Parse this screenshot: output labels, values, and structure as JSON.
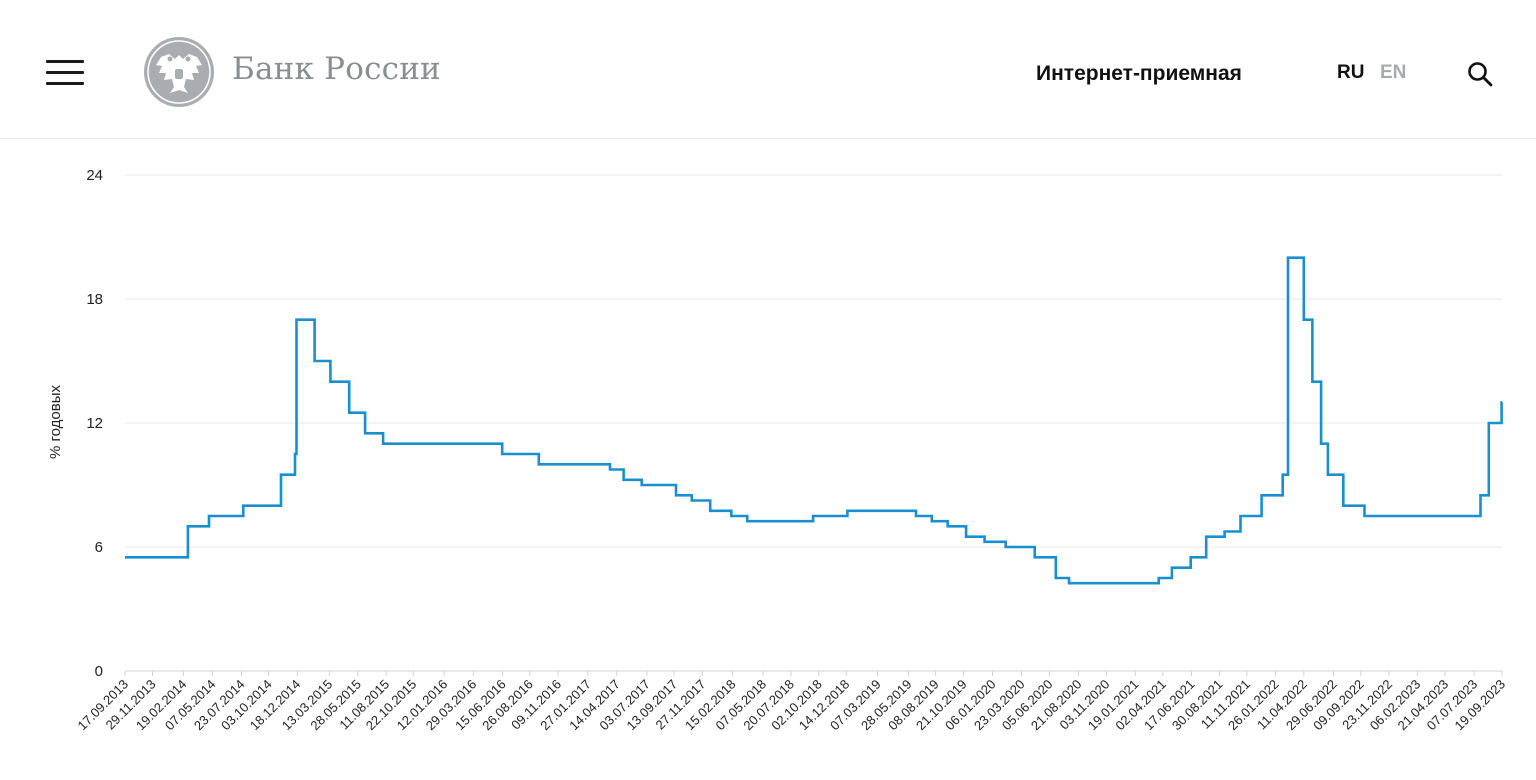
{
  "header": {
    "logo_text": "Банк России",
    "reception_label": "Интернет-приемная",
    "lang_ru": "RU",
    "lang_en": "EN",
    "icons": {
      "menu": "hamburger-menu-icon",
      "emblem": "double-headed-eagle-emblem",
      "search": "search-icon"
    }
  },
  "colors": {
    "line": "#1a8fd0",
    "grid": "#e6e8eb",
    "text": "#111111",
    "logo_gray": "#8a8e93",
    "inactive_lang": "#a7abb0"
  },
  "chart_data": {
    "type": "line",
    "title": "",
    "xlabel": "",
    "ylabel": "% годовых",
    "ylim": [
      0,
      24
    ],
    "yticks": [
      0,
      6,
      12,
      18,
      24
    ],
    "grid": true,
    "legend": "none",
    "line_style": "step",
    "xticks": [
      "17.09.2013",
      "29.11.2013",
      "19.02.2014",
      "07.05.2014",
      "23.07.2014",
      "03.10.2014",
      "18.12.2014",
      "13.03.2015",
      "28.05.2015",
      "11.08.2015",
      "22.10.2015",
      "12.01.2016",
      "29.03.2016",
      "15.06.2016",
      "26.08.2016",
      "09.11.2016",
      "27.01.2017",
      "14.04.2017",
      "03.07.2017",
      "13.09.2017",
      "27.11.2017",
      "15.02.2018",
      "07.05.2018",
      "20.07.2018",
      "02.10.2018",
      "14.12.2018",
      "07.03.2019",
      "28.05.2019",
      "08.08.2019",
      "21.10.2019",
      "06.01.2020",
      "23.03.2020",
      "05.06.2020",
      "21.08.2020",
      "03.11.2020",
      "19.01.2021",
      "02.04.2021",
      "17.06.2021",
      "30.08.2021",
      "11.11.2021",
      "26.01.2022",
      "11.04.2022",
      "29.06.2022",
      "09.09.2022",
      "23.11.2022",
      "06.02.2023",
      "21.04.2023",
      "07.07.2023",
      "19.09.2023"
    ],
    "series": [
      {
        "x": [
          "17.09.2013",
          "03.03.2014",
          "28.04.2014",
          "28.07.2014",
          "05.11.2014",
          "12.12.2014",
          "16.12.2014",
          "02.02.2015",
          "16.03.2015",
          "05.05.2015",
          "16.06.2015",
          "03.08.2015",
          "14.06.2016",
          "19.09.2016",
          "27.03.2017",
          "02.05.2017",
          "19.06.2017",
          "18.09.2017",
          "30.10.2017",
          "18.12.2017",
          "12.02.2018",
          "26.03.2018",
          "17.09.2018",
          "17.12.2018",
          "17.06.2019",
          "29.07.2019",
          "09.09.2019",
          "28.10.2019",
          "16.12.2019",
          "10.02.2020",
          "27.04.2020",
          "22.06.2020",
          "27.07.2020",
          "22.03.2021",
          "26.04.2021",
          "15.06.2021",
          "26.07.2021",
          "13.09.2021",
          "25.10.2021",
          "20.12.2021",
          "14.02.2022",
          "28.02.2022",
          "11.04.2022",
          "04.05.2022",
          "27.05.2022",
          "14.06.2022",
          "25.07.2022",
          "19.09.2022",
          "24.07.2023",
          "15.08.2023",
          "18.09.2023"
        ],
        "values": [
          5.5,
          7.0,
          7.5,
          8.0,
          9.5,
          10.5,
          17.0,
          15.0,
          14.0,
          12.5,
          11.5,
          11.0,
          10.5,
          10.0,
          9.75,
          9.25,
          9.0,
          8.5,
          8.25,
          7.75,
          7.5,
          7.25,
          7.5,
          7.75,
          7.5,
          7.25,
          7.0,
          6.5,
          6.25,
          6.0,
          5.5,
          4.5,
          4.25,
          4.5,
          5.0,
          5.5,
          6.5,
          6.75,
          7.5,
          8.5,
          9.5,
          20.0,
          17.0,
          14.0,
          11.0,
          9.5,
          8.0,
          7.5,
          8.5,
          12.0,
          13.0
        ]
      }
    ]
  }
}
